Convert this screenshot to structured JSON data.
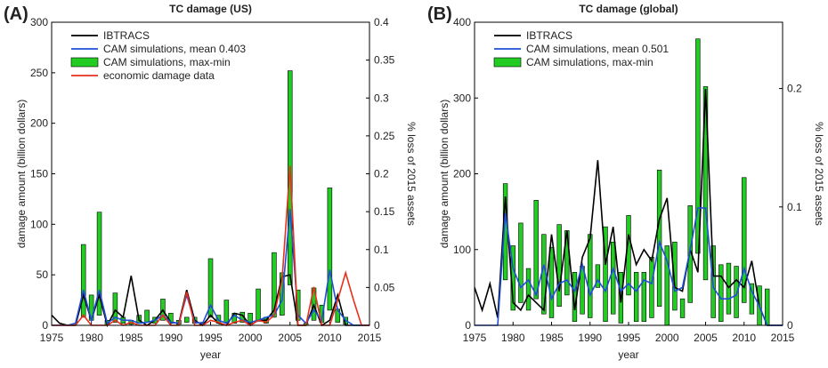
{
  "chart_data": [
    {
      "type": "line",
      "panel_label": "(A)",
      "title": "TC damage (US)",
      "xlabel": "year",
      "ylabel": "damage amount (billion dollars)",
      "y2label": "% loss of 2015 assets",
      "legend": "upper left",
      "x": [
        1975,
        1976,
        1977,
        1978,
        1979,
        1980,
        1981,
        1982,
        1983,
        1984,
        1985,
        1986,
        1987,
        1988,
        1989,
        1990,
        1991,
        1992,
        1993,
        1994,
        1995,
        1996,
        1997,
        1998,
        1999,
        2000,
        2001,
        2002,
        2003,
        2004,
        2005,
        2006,
        2007,
        2008,
        2009,
        2010,
        2011,
        2012,
        2013,
        2014,
        2015
      ],
      "xlim": [
        1975,
        2015
      ],
      "xticks": [
        1975,
        1980,
        1985,
        1990,
        1995,
        2000,
        2005,
        2010,
        2015
      ],
      "ylim": [
        0,
        300
      ],
      "yticks": [
        0,
        50,
        100,
        150,
        200,
        250,
        300
      ],
      "y2lim": [
        0,
        0.4
      ],
      "y2ticks": [
        0,
        0.05,
        0.1,
        0.15,
        0.2,
        0.25,
        0.3,
        0.35,
        0.4
      ],
      "series": [
        {
          "name": "IBTRACS",
          "color": "#000000",
          "values": [
            10,
            2,
            0,
            0,
            30,
            5,
            30,
            0,
            15,
            8,
            49,
            5,
            0,
            5,
            15,
            3,
            2,
            35,
            5,
            0,
            10,
            2,
            0,
            12,
            10,
            0,
            5,
            5,
            15,
            48,
            50,
            0,
            0,
            20,
            0,
            5,
            30,
            0,
            0,
            0,
            0
          ]
        },
        {
          "name": "CAM simulations, mean 0.403",
          "color": "#1f4fd8",
          "values": [
            0,
            0,
            0,
            2,
            35,
            5,
            35,
            2,
            8,
            5,
            5,
            2,
            3,
            5,
            10,
            3,
            2,
            30,
            3,
            2,
            20,
            5,
            2,
            10,
            5,
            3,
            5,
            8,
            10,
            25,
            115,
            10,
            2,
            15,
            5,
            55,
            15,
            5,
            0,
            0,
            0
          ]
        },
        {
          "name": "CAM simulations, max-min",
          "color": "#22cc22",
          "kind": "range-bar",
          "low": [
            null,
            null,
            null,
            null,
            8,
            5,
            10,
            0,
            3,
            2,
            1,
            2,
            3,
            2,
            5,
            2,
            1,
            3,
            2,
            0,
            8,
            2,
            3,
            2,
            3,
            2,
            4,
            2,
            8,
            10,
            40,
            5,
            0,
            5,
            3,
            15,
            3,
            1,
            null,
            null,
            null
          ],
          "high": [
            null,
            null,
            null,
            null,
            80,
            30,
            112,
            5,
            32,
            8,
            5,
            10,
            15,
            8,
            26,
            12,
            5,
            8,
            8,
            3,
            66,
            10,
            25,
            12,
            13,
            12,
            36,
            8,
            72,
            52,
            252,
            35,
            2,
            37,
            20,
            136,
            16,
            8,
            null,
            null,
            null
          ]
        },
        {
          "name": "economic damage data",
          "color": "#e8301c",
          "values": [
            0,
            0,
            0,
            0,
            10,
            0,
            0,
            0,
            5,
            0,
            3,
            0,
            0,
            0,
            10,
            0,
            0,
            33,
            0,
            0,
            5,
            3,
            0,
            3,
            5,
            0,
            5,
            3,
            10,
            45,
            158,
            0,
            0,
            38,
            0,
            0,
            25,
            52,
            25,
            0,
            0
          ]
        }
      ]
    },
    {
      "type": "line",
      "panel_label": "(B)",
      "title": "TC damage (global)",
      "xlabel": "year",
      "ylabel": "damage amount (billion dollars)",
      "y2label": "% loss of 2015 assets",
      "legend": "upper left",
      "x": [
        1975,
        1976,
        1977,
        1978,
        1979,
        1980,
        1981,
        1982,
        1983,
        1984,
        1985,
        1986,
        1987,
        1988,
        1989,
        1990,
        1991,
        1992,
        1993,
        1994,
        1995,
        1996,
        1997,
        1998,
        1999,
        2000,
        2001,
        2002,
        2003,
        2004,
        2005,
        2006,
        2007,
        2008,
        2009,
        2010,
        2011,
        2012,
        2013,
        2014,
        2015
      ],
      "xlim": [
        1975,
        2015
      ],
      "xticks": [
        1975,
        1980,
        1985,
        1990,
        1995,
        2000,
        2005,
        2010,
        2015
      ],
      "ylim": [
        0,
        400
      ],
      "yticks": [
        0,
        100,
        200,
        300,
        400
      ],
      "y2lim": [
        0,
        0.256
      ],
      "y2ticks": [
        0,
        0.1,
        0.2
      ],
      "series": [
        {
          "name": "IBTRACS",
          "color": "#000000",
          "values": [
            50,
            20,
            55,
            10,
            170,
            30,
            20,
            40,
            30,
            20,
            120,
            45,
            125,
            20,
            90,
            115,
            218,
            80,
            130,
            30,
            120,
            80,
            100,
            85,
            140,
            168,
            50,
            45,
            100,
            70,
            312,
            65,
            65,
            50,
            60,
            50,
            85,
            25,
            0,
            0,
            0
          ]
        },
        {
          "name": "CAM simulations, mean 0.501",
          "color": "#1f4fd8",
          "values": [
            0,
            0,
            0,
            0,
            148,
            75,
            50,
            60,
            40,
            80,
            35,
            55,
            60,
            45,
            80,
            40,
            60,
            45,
            75,
            45,
            55,
            45,
            60,
            55,
            110,
            85,
            45,
            50,
            100,
            155,
            155,
            50,
            35,
            35,
            40,
            75,
            45,
            25,
            0,
            0,
            0
          ]
        },
        {
          "name": "CAM simulations, max-min",
          "color": "#22cc22",
          "kind": "range-bar",
          "low": [
            null,
            null,
            null,
            null,
            60,
            20,
            30,
            20,
            35,
            15,
            10,
            25,
            40,
            5,
            15,
            10,
            50,
            5,
            15,
            3,
            40,
            5,
            5,
            10,
            25,
            0,
            20,
            10,
            30,
            95,
            60,
            10,
            5,
            15,
            10,
            30,
            15,
            0,
            0,
            null,
            null
          ],
          "high": [
            null,
            null,
            null,
            null,
            187,
            105,
            135,
            75,
            165,
            120,
            103,
            133,
            125,
            70,
            78,
            120,
            80,
            130,
            110,
            70,
            145,
            70,
            70,
            90,
            205,
            105,
            110,
            35,
            158,
            378,
            315,
            105,
            80,
            82,
            78,
            195,
            55,
            52,
            48,
            null,
            null
          ]
        }
      ]
    }
  ]
}
